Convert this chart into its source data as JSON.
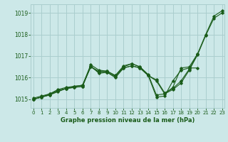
{
  "title": "Graphe pression niveau de la mer (hPa)",
  "bg_color": "#cce8e8",
  "grid_color": "#aacece",
  "line_color": "#1a5c1a",
  "ylim": [
    1014.6,
    1019.4
  ],
  "xlim": [
    -0.3,
    23.3
  ],
  "yticks": [
    1015,
    1016,
    1017,
    1018,
    1019
  ],
  "xticks": [
    0,
    1,
    2,
    3,
    4,
    5,
    6,
    7,
    8,
    9,
    10,
    11,
    12,
    13,
    14,
    15,
    16,
    17,
    18,
    19,
    20,
    21,
    22,
    23
  ],
  "series": [
    [
      1015.0,
      1015.1,
      1015.25,
      1015.4,
      1015.5,
      1015.6,
      1015.65,
      1016.6,
      1016.35,
      1016.3,
      1016.1,
      1016.5,
      1016.65,
      1016.5,
      1016.1,
      1015.9,
      1015.3,
      1015.5,
      1015.85,
      1016.4,
      1017.1,
      1018.0,
      1018.85,
      1019.1
    ],
    [
      1015.0,
      1015.1,
      1015.2,
      1015.4,
      1015.5,
      1015.55,
      1015.6,
      1016.5,
      1016.25,
      1016.25,
      1016.05,
      1016.45,
      1016.55,
      1016.45,
      1016.1,
      1015.85,
      1015.25,
      1015.45,
      1015.75,
      1016.35,
      1017.05,
      1017.95,
      1018.75,
      1019.0
    ],
    [
      1015.0,
      1015.1,
      1015.2,
      1015.35,
      1015.5,
      1015.55,
      1015.6,
      1016.55,
      1016.2,
      1016.25,
      1016.0,
      1016.45,
      1016.55,
      1016.45,
      1016.1,
      1015.1,
      1015.15,
      1015.85,
      1016.35,
      1016.45,
      1016.45,
      null,
      null,
      null
    ],
    [
      1015.05,
      1015.15,
      1015.25,
      1015.45,
      1015.55,
      1015.6,
      1015.65,
      1016.5,
      1016.3,
      1016.3,
      1016.1,
      1016.55,
      1016.65,
      1016.5,
      1016.15,
      1015.2,
      1015.25,
      1015.55,
      1016.45,
      1016.5,
      1017.1,
      null,
      null,
      null
    ]
  ]
}
